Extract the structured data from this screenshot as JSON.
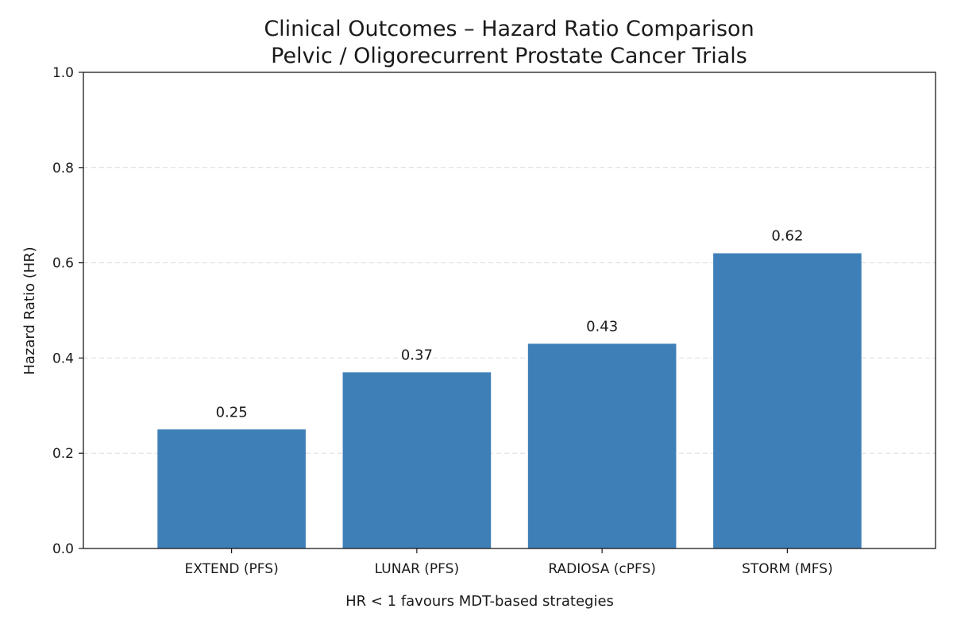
{
  "chart_data": {
    "type": "bar",
    "title": "Clinical Outcomes – Hazard Ratio Comparison",
    "subtitle": "Pelvic / Oligorecurrent Prostate Cancer Trials",
    "xlabel": "HR < 1 favours MDT-based strategies",
    "ylabel": "Hazard Ratio (HR)",
    "categories": [
      "EXTEND (PFS)",
      "LUNAR (PFS)",
      "RADIOSA (cPFS)",
      "STORM (MFS)"
    ],
    "values": [
      0.25,
      0.37,
      0.43,
      0.62
    ],
    "data_labels": [
      "0.25",
      "0.37",
      "0.43",
      "0.62"
    ],
    "ylim": [
      0.0,
      1.0
    ],
    "yticks": [
      0.0,
      0.2,
      0.4,
      0.6,
      0.8,
      1.0
    ],
    "ytick_labels": [
      "0.0",
      "0.2",
      "0.4",
      "0.6",
      "0.8",
      "1.0"
    ],
    "grid": "horizontal-dashed",
    "legend": "none",
    "colors": {
      "bar": "#3f7fb8",
      "grid": "#d9dde3",
      "axis": "#1a1a1a"
    }
  }
}
